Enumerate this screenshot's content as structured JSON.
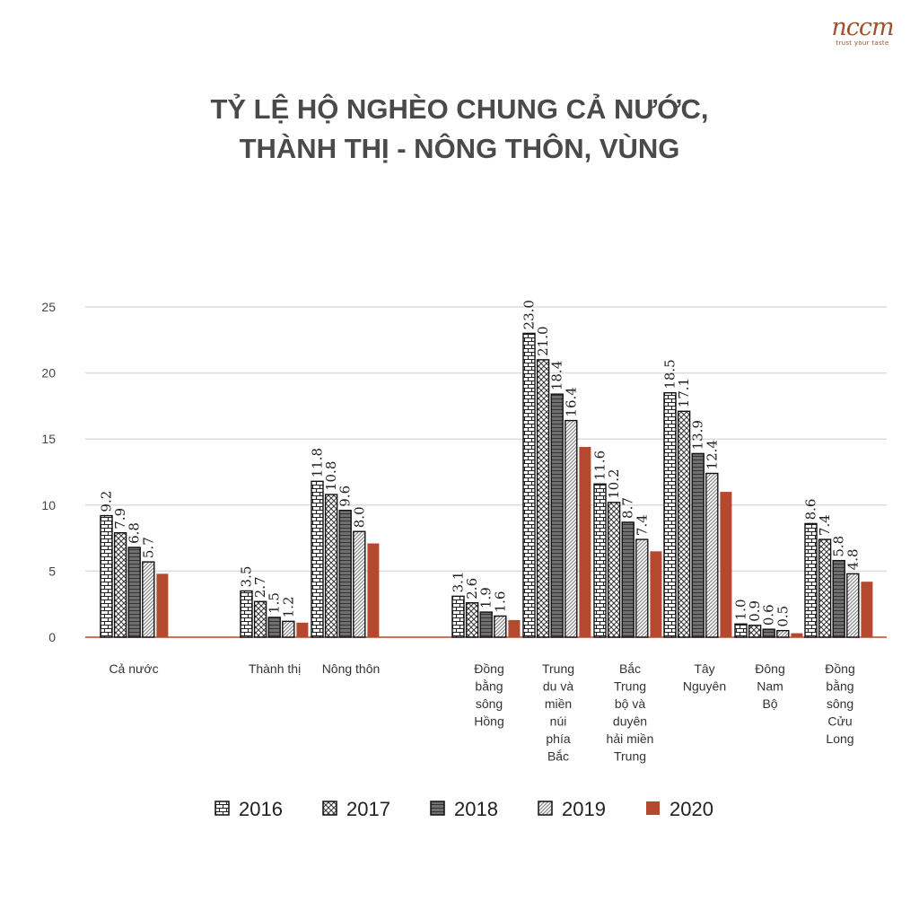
{
  "logo": {
    "word": "nccm",
    "tagline": "trust your taste"
  },
  "title_line1": "TỶ LỆ HỘ NGHÈO CHUNG CẢ NƯỚC,",
  "title_line2": "THÀNH THỊ - NÔNG THÔN, VÙNG",
  "chart_data": {
    "type": "bar",
    "title": "TỶ LỆ HỘ NGHÈO CHUNG CẢ NƯỚC, THÀNH THỊ - NÔNG THÔN, VÙNG",
    "xlabel": "",
    "ylabel": "",
    "ylim": [
      0,
      25
    ],
    "yticks": [
      "0",
      "5",
      "10",
      "15",
      "20",
      "25"
    ],
    "grid": true,
    "legend_position": "bottom",
    "categories": [
      [
        "Cả nước"
      ],
      [
        "Thành thị"
      ],
      [
        "Nông thôn"
      ],
      [
        "Đồng",
        "bằng",
        "sông",
        "Hồng"
      ],
      [
        "Trung",
        "du và",
        "miền",
        "núi",
        "phía",
        "Bắc"
      ],
      [
        "Bắc",
        "Trung",
        "bộ và",
        "duyên",
        "hải miền",
        "Trung"
      ],
      [
        "Tây",
        "Nguyên"
      ],
      [
        "Đông",
        "Nam",
        "Bộ"
      ],
      [
        "Đồng",
        "bằng",
        "sông",
        "Cửu",
        "Long"
      ]
    ],
    "series": [
      {
        "name": "2016",
        "pattern": "brick",
        "values": [
          9.2,
          3.5,
          11.8,
          3.1,
          23.0,
          11.6,
          18.5,
          1.0,
          8.6
        ],
        "labels": [
          "9.2",
          "3.5",
          "11.8",
          "3.1",
          "23.0",
          "11.6",
          "18.5",
          "1.0",
          "8.6"
        ]
      },
      {
        "name": "2017",
        "pattern": "cross",
        "values": [
          7.9,
          2.7,
          10.8,
          2.6,
          21.0,
          10.2,
          17.1,
          0.9,
          7.4
        ],
        "labels": [
          "7.9",
          "2.7",
          "10.8",
          "2.6",
          "21.0",
          "10.2",
          "17.1",
          "0.9",
          "7.4"
        ]
      },
      {
        "name": "2018",
        "pattern": "dense",
        "values": [
          6.8,
          1.5,
          9.6,
          1.9,
          18.4,
          8.7,
          13.9,
          0.6,
          5.8
        ],
        "labels": [
          "6.8",
          "1.5",
          "9.6",
          "1.9",
          "18.4",
          "8.7",
          "13.9",
          "0.6",
          "5.8"
        ]
      },
      {
        "name": "2019",
        "pattern": "diagonal",
        "values": [
          5.7,
          1.2,
          8.0,
          1.6,
          16.4,
          7.4,
          12.4,
          0.5,
          4.8
        ],
        "labels": [
          "5.7",
          "1.2",
          "8.0",
          "1.6",
          "16.4",
          "7.4",
          "12.4",
          "0.5",
          "4.8"
        ]
      },
      {
        "name": "2020",
        "pattern": "solid",
        "color": "#b5492d",
        "values": [
          4.8,
          1.1,
          7.1,
          1.3,
          14.4,
          6.5,
          11.0,
          0.3,
          4.2
        ],
        "labels": [
          "4.8",
          "1.1",
          "7.1",
          "1.3",
          "14.4",
          "6.5",
          "11.0",
          "0.3",
          "4.2"
        ]
      }
    ],
    "colors": {
      "accent": "#b5492d",
      "axis": "#b5492d",
      "grid": "#dcdcdc",
      "text": "#333333"
    }
  }
}
